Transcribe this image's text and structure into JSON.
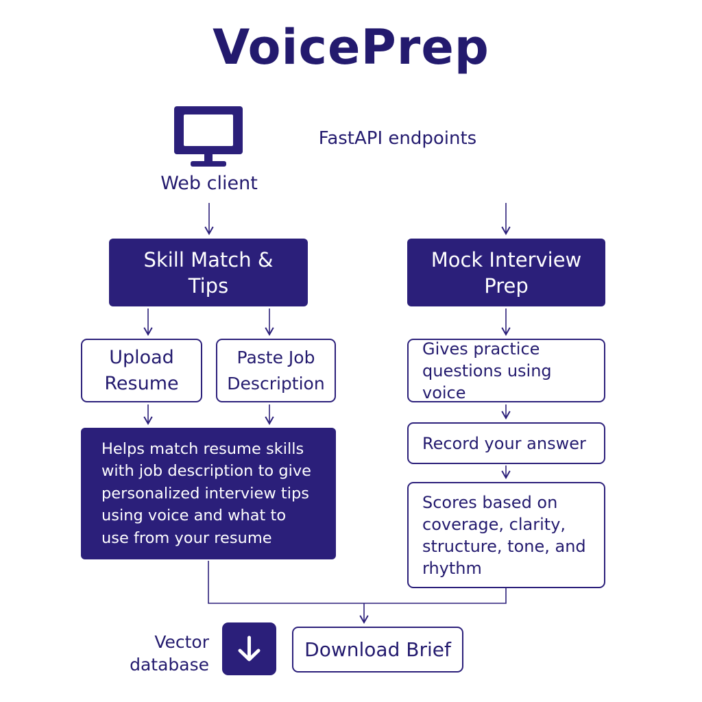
{
  "header": {
    "title": "VoicePrep"
  },
  "client": {
    "label": "Web client",
    "icon": "monitor-icon"
  },
  "api": {
    "label": "FastAPI endpoints"
  },
  "skill_match": {
    "title_line1": "Skill Match &",
    "title_line2": "Tips",
    "upload_line1": "Upload",
    "upload_line2": "Resume",
    "paste_line1": "Paste Job",
    "paste_line2": "Description",
    "summary_lines": [
      "Helps match resume skills",
      "with job description to give",
      "personalized interview tips",
      "using voice and what to",
      "use from your resume"
    ]
  },
  "mock_interview": {
    "title_line1": "Mock Interview",
    "title_line2": "Prep",
    "step1_lines": [
      "Gives practice",
      "questions using voice"
    ],
    "step2": "Record your answer",
    "step3_lines": [
      "Scores based on",
      "coverage, clarity,",
      "structure, tone, and",
      "rhythm"
    ]
  },
  "footer": {
    "db_line1": "Vector",
    "db_line2": "database",
    "download_icon": "download-arrow-icon",
    "download_label": "Download Brief"
  },
  "colors": {
    "primary": "#2b1f7a",
    "text": "#231a6e",
    "background": "#ffffff"
  }
}
